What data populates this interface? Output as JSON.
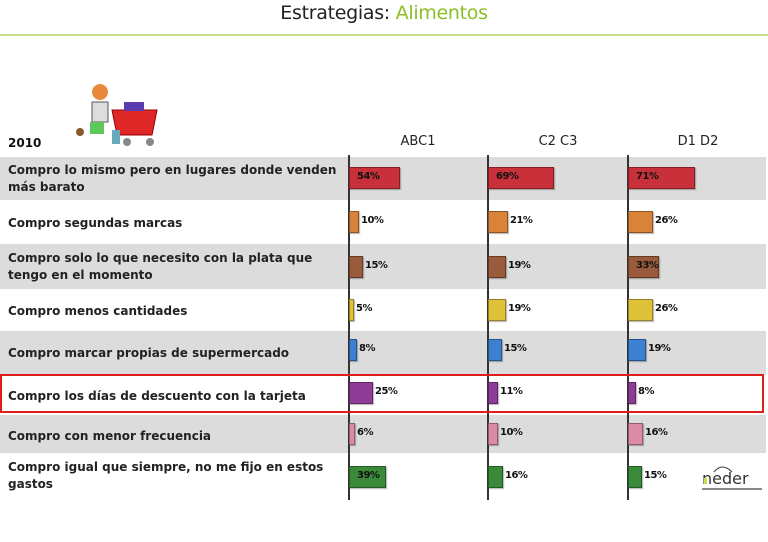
{
  "header": {
    "title_prefix": "Estrategias:",
    "title_highlight": "Alimentos",
    "accent_color": "#8cbf26"
  },
  "clipart": "shopping-cart-person-illustration",
  "logo": {
    "text": "neder"
  },
  "chart_data": {
    "type": "bar",
    "orientation": "horizontal",
    "title": "Estrategias: Alimentos",
    "year_label": "2010",
    "categories": [
      "Compro lo mismo pero en lugares donde venden más barato",
      "Compro segundas marcas",
      "Compro solo lo que necesito con la plata que tengo en el momento",
      "Compro menos cantidades",
      "Compro marcar propias de supermercado",
      "Compro los días de descuento con la tarjeta",
      "Compro con menor frecuencia",
      "Compro igual que siempre, no me fijo en estos gastos"
    ],
    "series": [
      {
        "name": "ABC1",
        "values": [
          54,
          10,
          15,
          5,
          8,
          25,
          6,
          39
        ]
      },
      {
        "name": "C2 C3",
        "values": [
          69,
          21,
          19,
          19,
          15,
          11,
          10,
          16
        ]
      },
      {
        "name": "D1 D2",
        "values": [
          71,
          26,
          33,
          26,
          19,
          8,
          16,
          15
        ]
      }
    ],
    "value_labels": [
      [
        "54%",
        "10%",
        "15%",
        "5%",
        "8%",
        "25%",
        "6%",
        "39%"
      ],
      [
        "69%",
        "21%",
        "19%",
        "19%",
        "15%",
        "11%",
        "10%",
        "16%"
      ],
      [
        "71%",
        "26%",
        "33%",
        "26%",
        "19%",
        "8%",
        "16%",
        "15%"
      ]
    ],
    "bar_colors": [
      "#c8313a",
      "#d8823a",
      "#9a5a3c",
      "#e0c23a",
      "#3d7fd0",
      "#8e3c98",
      "#dc8aa8",
      "#3a8a3a"
    ],
    "highlighted_category": "Compro los días de descuento con la tarjeta",
    "highlight_color": "#e01e1e",
    "xlim": [
      0,
      100
    ],
    "grid": false,
    "legend": "column headers"
  }
}
